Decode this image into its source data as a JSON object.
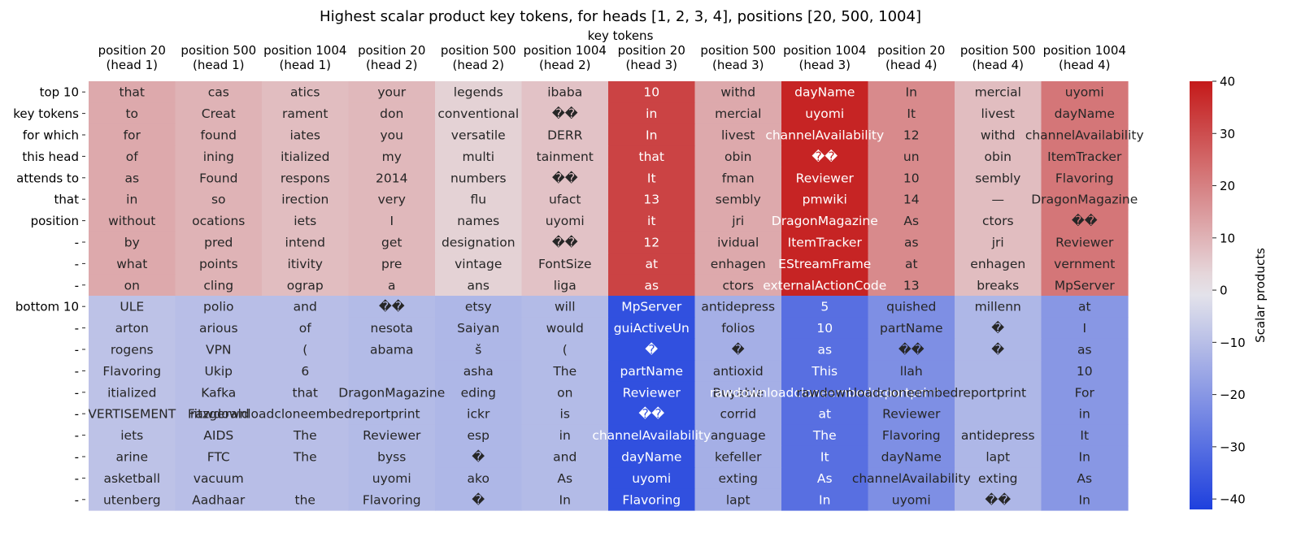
{
  "chart_data": {
    "type": "heatmap",
    "title": "Highest scalar product key tokens, for heads [1, 2, 3, 4], positions [20, 500, 1004]",
    "xlabel": "key tokens",
    "columns": [
      [
        "position 20",
        "(head 1)"
      ],
      [
        "position 500",
        "(head 1)"
      ],
      [
        "position 1004",
        "(head 1)"
      ],
      [
        "position 20",
        "(head 2)"
      ],
      [
        "position 500",
        "(head 2)"
      ],
      [
        "position 1004",
        "(head 2)"
      ],
      [
        "position 20",
        "(head 3)"
      ],
      [
        "position 500",
        "(head 3)"
      ],
      [
        "position 1004",
        "(head 3)"
      ],
      [
        "position 20",
        "(head 4)"
      ],
      [
        "position 500",
        "(head 4)"
      ],
      [
        "position 1004",
        "(head 4)"
      ]
    ],
    "row_labels": [
      "top 10",
      "key tokens",
      "for which",
      "this head",
      "attends to",
      "that",
      "position",
      "-",
      "-",
      "-",
      "bottom 10",
      "-",
      "-",
      "-",
      "-",
      "-",
      "-",
      "-",
      "-",
      "-"
    ],
    "column_values": [
      12,
      10,
      8,
      9,
      4,
      7,
      32,
      12,
      38,
      18,
      8,
      22
    ],
    "row_values": [
      -9,
      -10,
      -10,
      -11,
      -12,
      -11,
      -15,
      -16,
      -17,
      -18
    ],
    "cells": [
      [
        "that",
        "cas",
        "atics",
        "your",
        "legends",
        "ibaba",
        "10",
        "withd",
        "dayName",
        "In",
        "mercial",
        "uyomi"
      ],
      [
        "to",
        "Creat",
        "rament",
        "don",
        "conventional",
        "��",
        "in",
        "mercial",
        "uyomi",
        "It",
        "livest",
        "dayName"
      ],
      [
        "for",
        "found",
        "iates",
        "you",
        "versatile",
        "DERR",
        "In",
        "livest",
        "channelAvailability",
        "12",
        "withd",
        "channelAvailability"
      ],
      [
        "of",
        "ining",
        "itialized",
        "my",
        "multi",
        "tainment",
        "that",
        "obin",
        "��",
        "un",
        "obin",
        "ItemTracker"
      ],
      [
        "as",
        "Found",
        "respons",
        "2014",
        "numbers",
        "��",
        "It",
        "fman",
        "Reviewer",
        "10",
        "sembly",
        "Flavoring"
      ],
      [
        "in",
        "so",
        "irection",
        "very",
        "flu",
        "ufact",
        "13",
        "sembly",
        "pmwiki",
        "14",
        "—",
        "DragonMagazine"
      ],
      [
        "without",
        "ocations",
        "iets",
        "I",
        "names",
        "uyomi",
        "it",
        "jri",
        "DragonMagazine",
        "As",
        "ctors",
        "��"
      ],
      [
        "by",
        "pred",
        "intend",
        "get",
        "designation",
        "��",
        "12",
        "ividual",
        "ItemTracker",
        "as",
        "jri",
        "Reviewer"
      ],
      [
        "what",
        "points",
        "itivity",
        "pre",
        "vintage",
        "FontSize",
        "at",
        "enhagen",
        "EStreamFrame",
        "at",
        "enhagen",
        "vernment"
      ],
      [
        "on",
        "cling",
        "ograp",
        "a",
        "ans",
        "liga",
        "as",
        "ctors",
        "externalActionCode",
        "13",
        "breaks",
        "MpServer"
      ],
      [
        "ULE",
        "polio",
        "and",
        "��",
        "etsy",
        "will",
        "MpServer",
        "antidepress",
        "5",
        "quished",
        "millenn",
        "at"
      ],
      [
        "arton",
        "arious",
        "of",
        "nesota",
        "Saiyan",
        "would",
        "guiActiveUn",
        "folios",
        "10",
        "partName",
        "�",
        "I"
      ],
      [
        "rogens",
        "VPN",
        "(",
        "abama",
        "š",
        "(",
        "�\u0001",
        "�",
        "as",
        "��",
        "�",
        "as"
      ],
      [
        "Flavoring",
        "Ukip",
        "6",
        "\u0001\u0001",
        "asha",
        "The",
        "partName",
        "antioxid",
        "This",
        "llah",
        "\u0001",
        "10"
      ],
      [
        "itialized",
        "Kafka",
        "that",
        "DragonMagazine",
        "eding",
        "on",
        "Reviewer",
        "Buyable",
        "rawdownloadcloneembedreportprint",
        "rawdownloadcloneembedreportprint",
        "\u0001",
        "For"
      ],
      [
        "VERTISEMENT",
        "Fitzgerald",
        "rawdownloadcloneembedreportprint",
        "",
        "ickr",
        "is",
        "��",
        "corrid",
        "at",
        "Reviewer",
        "\u0001",
        "in"
      ],
      [
        "iets",
        "AIDS",
        "The",
        "Reviewer",
        "esp",
        "in",
        "channelAvailability",
        "anguage",
        "The",
        "Flavoring",
        "antidepress",
        "It"
      ],
      [
        "arine",
        "FTC",
        "The",
        "byss",
        "�",
        "and",
        "dayName",
        "kefeller",
        "It",
        "dayName",
        "lapt",
        "In"
      ],
      [
        "asketball",
        "vacuum",
        "",
        "uyomi",
        "ako",
        "As",
        "uyomi",
        "exting",
        "As",
        "channelAvailability",
        "exting",
        "As"
      ],
      [
        "utenberg",
        "Aadhaar",
        "the",
        "Flavoring",
        "�",
        "In",
        "Flavoring",
        "lapt",
        "In",
        "uyomi",
        "��\u0001",
        "In"
      ]
    ],
    "colorbar": {
      "label": "Scalar products",
      "range": [
        -42,
        40
      ],
      "ticks": [
        -40,
        -30,
        -20,
        -10,
        0,
        10,
        20,
        30,
        40
      ],
      "colormap": "coolwarm",
      "low_color": "#1e40de",
      "mid_color": "#e8e6ea",
      "high_color": "#c41a1a"
    }
  }
}
